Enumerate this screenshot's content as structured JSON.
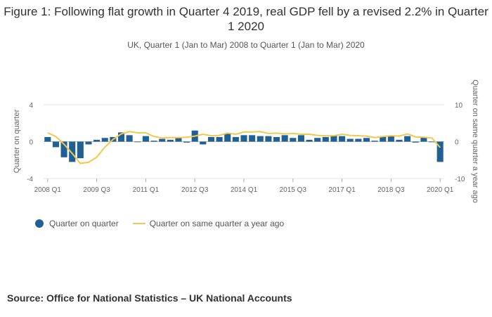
{
  "header": {
    "title": "Figure 1: Following flat growth in Quarter 4 2019, real GDP fell by a revised 2.2% in Quarter 1 2020",
    "subtitle": "UK, Quarter 1 (Jan to Mar) 2008 to Quarter 1 (Jan to Mar) 2020"
  },
  "footer": {
    "source": "Source: Office for National Statistics – UK National Accounts"
  },
  "colors": {
    "bar": "#206095",
    "line": "#f1c94d",
    "grid": "#e6e6e6",
    "zero": "#bbbbbb"
  },
  "chart_data": {
    "type": "bar",
    "title": "Figure 1: Following flat growth in Quarter 4 2019, real GDP fell by a revised 2.2% in Quarter 1 2020",
    "ylabel": "Quarter on quarter",
    "y2label": "Quarter on same quarter a year ago",
    "ylim": [
      -4,
      4
    ],
    "y2lim": [
      -10,
      10
    ],
    "yticks": [
      "4",
      "0",
      "-4"
    ],
    "y2ticks": [
      "10",
      "0",
      "-10"
    ],
    "xtick_labels": [
      "2008 Q1",
      "2009 Q3",
      "2011 Q1",
      "2012 Q3",
      "2014 Q1",
      "2015 Q3",
      "2017 Q1",
      "2018 Q3",
      "2020 Q1"
    ],
    "xtick_index": [
      0,
      6,
      12,
      18,
      24,
      30,
      36,
      42,
      48
    ],
    "categories": [
      "2008 Q1",
      "2008 Q2",
      "2008 Q3",
      "2008 Q4",
      "2009 Q1",
      "2009 Q2",
      "2009 Q3",
      "2009 Q4",
      "2010 Q1",
      "2010 Q2",
      "2010 Q3",
      "2010 Q4",
      "2011 Q1",
      "2011 Q2",
      "2011 Q3",
      "2011 Q4",
      "2012 Q1",
      "2012 Q2",
      "2012 Q3",
      "2012 Q4",
      "2013 Q1",
      "2013 Q2",
      "2013 Q3",
      "2013 Q4",
      "2014 Q1",
      "2014 Q2",
      "2014 Q3",
      "2014 Q4",
      "2015 Q1",
      "2015 Q2",
      "2015 Q3",
      "2015 Q4",
      "2016 Q1",
      "2016 Q2",
      "2016 Q3",
      "2016 Q4",
      "2017 Q1",
      "2017 Q2",
      "2017 Q3",
      "2017 Q4",
      "2018 Q1",
      "2018 Q2",
      "2018 Q3",
      "2018 Q4",
      "2019 Q1",
      "2019 Q2",
      "2019 Q3",
      "2019 Q4",
      "2020 Q1"
    ],
    "series": [
      {
        "name": "Quarter on quarter",
        "axis": "left",
        "type": "bar",
        "values": [
          0.5,
          -0.6,
          -1.7,
          -2.2,
          -1.8,
          -0.3,
          0.2,
          0.4,
          0.5,
          1.0,
          0.7,
          0.0,
          0.6,
          0.1,
          0.3,
          0.2,
          0.5,
          -0.1,
          1.2,
          -0.3,
          0.5,
          0.5,
          0.9,
          0.5,
          0.7,
          0.7,
          0.6,
          0.6,
          0.5,
          0.7,
          0.4,
          0.7,
          0.2,
          0.4,
          0.5,
          0.7,
          0.6,
          0.3,
          0.3,
          0.4,
          0.1,
          0.5,
          0.6,
          0.2,
          0.6,
          -0.1,
          0.5,
          0.0,
          -2.2
        ]
      },
      {
        "name": "Quarter on same quarter a year ago",
        "axis": "right",
        "type": "line",
        "values": [
          2.4,
          1.4,
          -0.7,
          -3.2,
          -5.9,
          -5.6,
          -4.2,
          -1.5,
          0.6,
          2.1,
          2.7,
          2.4,
          2.4,
          1.4,
          1.0,
          1.1,
          1.1,
          1.2,
          1.5,
          2.0,
          1.6,
          1.7,
          2.3,
          2.0,
          2.6,
          2.6,
          2.7,
          2.2,
          2.3,
          2.1,
          2.2,
          2.0,
          2.0,
          1.7,
          1.6,
          1.6,
          2.0,
          1.7,
          1.6,
          1.5,
          1.1,
          1.4,
          1.6,
          1.5,
          2.1,
          1.3,
          1.2,
          1.0,
          -1.6
        ]
      }
    ],
    "legend": [
      "Quarter on quarter",
      "Quarter on same quarter a year ago"
    ],
    "legend_position": "bottom-left",
    "grid": true
  }
}
